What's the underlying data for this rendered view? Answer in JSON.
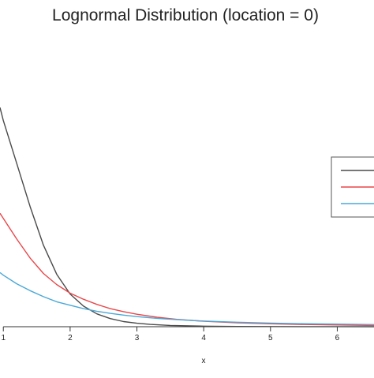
{
  "chart_data": {
    "type": "line",
    "title": "Lognormal Distribution (location = 0)",
    "xlabel": "x",
    "ylabel": "",
    "xlim": [
      0.95,
      6.55
    ],
    "ylim": [
      0,
      0.27
    ],
    "x_ticks": [
      1,
      2,
      3,
      4,
      5,
      6
    ],
    "x_tick_labels": [
      "1",
      "2",
      "3",
      "4",
      "5",
      "6"
    ],
    "grid": false,
    "legend": {
      "placement": "right",
      "entries": [
        "",
        "",
        ""
      ]
    },
    "series": [
      {
        "color": "#4a4a4a",
        "x": [
          0.95,
          1,
          1.2,
          1.4,
          1.6,
          1.8,
          2,
          2.2,
          2.4,
          2.6,
          2.8,
          3,
          3.2,
          3.5,
          4,
          4.5,
          5,
          5.5,
          6,
          6.55
        ],
        "y": [
          0.255,
          0.24,
          0.19,
          0.14,
          0.095,
          0.061,
          0.038,
          0.024,
          0.015,
          0.0095,
          0.006,
          0.004,
          0.0027,
          0.0015,
          0.0006,
          0.0003,
          0.00015,
          0.0001,
          5e-05,
          3e-05
        ]
      },
      {
        "color": "#e8474a",
        "x": [
          0.95,
          1,
          1.2,
          1.4,
          1.6,
          1.8,
          2,
          2.2,
          2.4,
          2.6,
          2.8,
          3,
          3.3,
          3.6,
          4,
          4.5,
          5,
          5.5,
          6,
          6.55
        ],
        "y": [
          0.132,
          0.126,
          0.102,
          0.08,
          0.062,
          0.049,
          0.039,
          0.032,
          0.026,
          0.021,
          0.0175,
          0.0145,
          0.011,
          0.0085,
          0.0063,
          0.0045,
          0.0034,
          0.0026,
          0.002,
          0.0015
        ]
      },
      {
        "color": "#4aa8d8",
        "x": [
          0.95,
          1,
          1.2,
          1.4,
          1.6,
          1.8,
          2,
          2.2,
          2.4,
          2.6,
          2.8,
          3,
          3.3,
          3.6,
          4,
          4.5,
          5,
          5.5,
          6,
          6.55
        ],
        "y": [
          0.063,
          0.06,
          0.05,
          0.042,
          0.035,
          0.029,
          0.025,
          0.021,
          0.018,
          0.0155,
          0.0135,
          0.0118,
          0.0097,
          0.0082,
          0.0066,
          0.0052,
          0.0042,
          0.0035,
          0.003,
          0.0025
        ]
      }
    ]
  }
}
